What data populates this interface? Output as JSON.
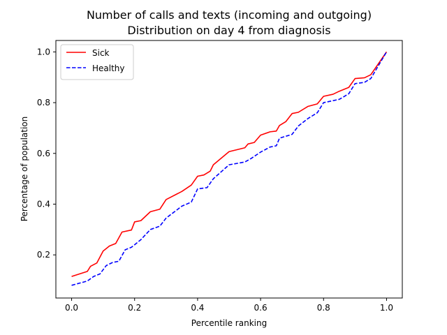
{
  "chart_data": {
    "type": "line",
    "title_line1": "Number of calls and texts (incoming and outgoing)",
    "title_line2": "Distribution on day 4 from diagnosis",
    "xlabel": "Percentile ranking",
    "ylabel": "Percentage of population",
    "xlim": [
      -0.05,
      1.05
    ],
    "ylim": [
      0.03,
      1.045
    ],
    "xticks": [
      0.0,
      0.2,
      0.4,
      0.6,
      0.8,
      1.0
    ],
    "xtick_labels": [
      "0.0",
      "0.2",
      "0.4",
      "0.6",
      "0.8",
      "1.0"
    ],
    "yticks": [
      0.2,
      0.4,
      0.6,
      0.8,
      1.0
    ],
    "ytick_labels": [
      "0.2",
      "0.4",
      "0.6",
      "0.8",
      "1.0"
    ],
    "grid": false,
    "legend_position": "upper-left",
    "series": [
      {
        "name": "Sick",
        "color": "#ff0000",
        "dash": "solid",
        "points": [
          [
            0.0,
            0.115
          ],
          [
            0.05,
            0.135
          ],
          [
            0.06,
            0.155
          ],
          [
            0.08,
            0.168
          ],
          [
            0.1,
            0.215
          ],
          [
            0.12,
            0.235
          ],
          [
            0.14,
            0.245
          ],
          [
            0.16,
            0.29
          ],
          [
            0.19,
            0.298
          ],
          [
            0.2,
            0.33
          ],
          [
            0.22,
            0.335
          ],
          [
            0.25,
            0.37
          ],
          [
            0.28,
            0.38
          ],
          [
            0.3,
            0.418
          ],
          [
            0.35,
            0.45
          ],
          [
            0.38,
            0.475
          ],
          [
            0.4,
            0.51
          ],
          [
            0.42,
            0.515
          ],
          [
            0.44,
            0.53
          ],
          [
            0.45,
            0.555
          ],
          [
            0.5,
            0.607
          ],
          [
            0.55,
            0.622
          ],
          [
            0.56,
            0.637
          ],
          [
            0.58,
            0.643
          ],
          [
            0.6,
            0.672
          ],
          [
            0.63,
            0.685
          ],
          [
            0.65,
            0.688
          ],
          [
            0.66,
            0.71
          ],
          [
            0.68,
            0.725
          ],
          [
            0.7,
            0.757
          ],
          [
            0.72,
            0.762
          ],
          [
            0.75,
            0.785
          ],
          [
            0.78,
            0.795
          ],
          [
            0.8,
            0.825
          ],
          [
            0.83,
            0.833
          ],
          [
            0.85,
            0.845
          ],
          [
            0.88,
            0.86
          ],
          [
            0.9,
            0.895
          ],
          [
            0.93,
            0.898
          ],
          [
            0.95,
            0.91
          ],
          [
            1.0,
            1.0
          ]
        ]
      },
      {
        "name": "Healthy",
        "color": "#0000ff",
        "dash": "dashed",
        "points": [
          [
            0.0,
            0.08
          ],
          [
            0.05,
            0.097
          ],
          [
            0.07,
            0.115
          ],
          [
            0.09,
            0.125
          ],
          [
            0.11,
            0.158
          ],
          [
            0.13,
            0.17
          ],
          [
            0.15,
            0.175
          ],
          [
            0.17,
            0.22
          ],
          [
            0.19,
            0.23
          ],
          [
            0.22,
            0.26
          ],
          [
            0.25,
            0.3
          ],
          [
            0.28,
            0.313
          ],
          [
            0.3,
            0.345
          ],
          [
            0.35,
            0.392
          ],
          [
            0.38,
            0.408
          ],
          [
            0.4,
            0.46
          ],
          [
            0.43,
            0.465
          ],
          [
            0.45,
            0.5
          ],
          [
            0.5,
            0.555
          ],
          [
            0.55,
            0.566
          ],
          [
            0.57,
            0.58
          ],
          [
            0.6,
            0.605
          ],
          [
            0.63,
            0.625
          ],
          [
            0.65,
            0.63
          ],
          [
            0.66,
            0.66
          ],
          [
            0.7,
            0.675
          ],
          [
            0.72,
            0.708
          ],
          [
            0.75,
            0.737
          ],
          [
            0.78,
            0.76
          ],
          [
            0.8,
            0.8
          ],
          [
            0.85,
            0.813
          ],
          [
            0.88,
            0.835
          ],
          [
            0.9,
            0.875
          ],
          [
            0.93,
            0.88
          ],
          [
            0.95,
            0.895
          ],
          [
            1.0,
            1.0
          ]
        ]
      }
    ]
  }
}
